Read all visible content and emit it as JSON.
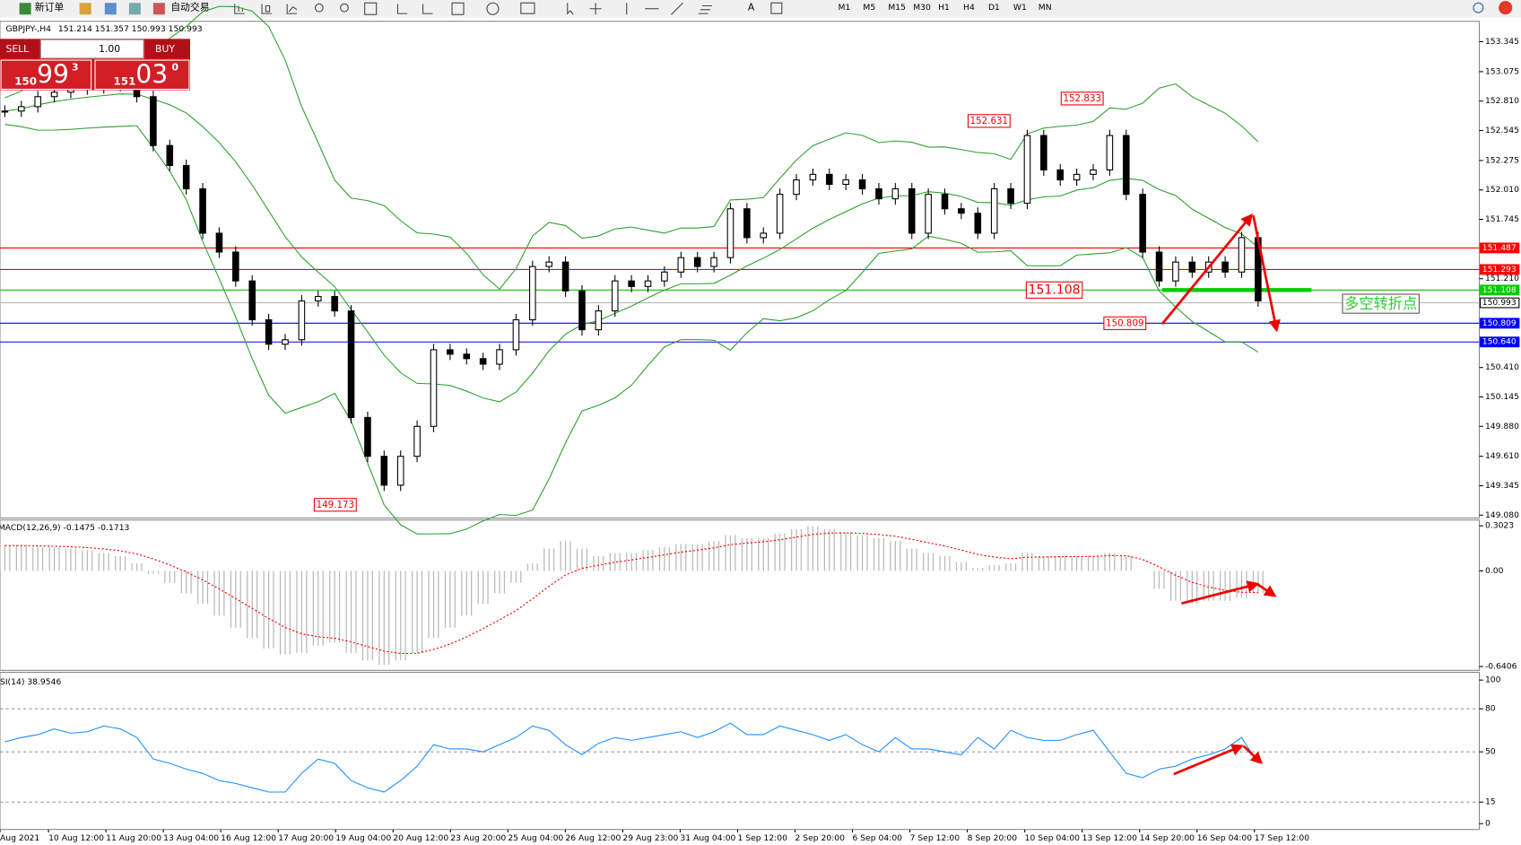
{
  "toolbar": {
    "new_order": "新订单",
    "auto_trading": "自动交易",
    "timeframes": [
      "M1",
      "M5",
      "M15",
      "M30",
      "H1",
      "H4",
      "D1",
      "W1",
      "MN"
    ]
  },
  "header": {
    "symbol": "GBPJPY-,H4",
    "quote": "151.214 151.357 150.993 150.993"
  },
  "trade_panel": {
    "sell": "SELL",
    "lots": "1.00",
    "buy": "BUY",
    "bid_big": "150",
    "bid_main": "99",
    "bid_small": "3",
    "ask_big": "151",
    "ask_main": "03",
    "ask_small": "0"
  },
  "chart": {
    "ylim": [
      149.08,
      153.345
    ],
    "yticks": [
      153.345,
      153.075,
      {
        "value": 152.81,
        "label": "152.810"
      },
      152.545,
      152.275,
      {
        "value": 152.01,
        "label": "152.010"
      },
      151.745,
      {
        "value": 151.21,
        "label": "151.210"
      },
      {
        "value": 150.41,
        "label": "150.410"
      },
      150.145,
      {
        "value": 149.88,
        "label": "149.880"
      },
      {
        "value": 149.61,
        "label": "149.610"
      },
      149.345,
      {
        "value": 149.08,
        "label": "149.080"
      }
    ],
    "current": 150.993,
    "levels": [
      {
        "value": 151.487,
        "color": "#ff0000"
      },
      {
        "value": 151.293,
        "color": "#ff0000"
      },
      {
        "value": 151.108,
        "color": "#00cc00"
      },
      {
        "value": 150.809,
        "color": "#0000ff"
      },
      {
        "value": 150.64,
        "label": "150.640",
        "color": "#0000ff"
      }
    ],
    "band_color": "#2ca02c",
    "closes": [
      152.72,
      152.76,
      152.85,
      152.89,
      152.92,
      152.93,
      152.95,
      152.98,
      152.85,
      152.41,
      152.23,
      152.02,
      151.62,
      151.45,
      151.19,
      150.84,
      150.62,
      150.66,
      151.01,
      151.05,
      150.92,
      149.96,
      149.61,
      149.35,
      149.61,
      149.88,
      150.57,
      150.53,
      150.49,
      150.44,
      150.57,
      150.84,
      151.32,
      151.36,
      151.1,
      150.75,
      150.92,
      151.19,
      151.14,
      151.19,
      151.27,
      151.4,
      151.32,
      151.4,
      151.84,
      151.58,
      151.62,
      151.97,
      152.1,
      152.15,
      152.06,
      152.1,
      152.02,
      151.93,
      152.02,
      151.62,
      151.97,
      151.84,
      151.8,
      151.62,
      152.02,
      151.89,
      152.5,
      152.19,
      152.1,
      152.15,
      152.19,
      152.5,
      151.97,
      151.45,
      151.19,
      151.36,
      151.27,
      151.36,
      151.27,
      151.58,
      151.01
    ],
    "annotations": [
      152.833,
      152.631,
      151.108,
      150.809,
      149.173
    ],
    "note": "多空转折点",
    "time_labels": [
      "Aug 2021",
      "10 Aug 12:00",
      "11 Aug 20:00",
      "13 Aug 04:00",
      "16 Aug 12:00",
      "17 Aug 20:00",
      "19 Aug 04:00",
      "20 Aug 12:00",
      "23 Aug 20:00",
      "25 Aug 04:00",
      "26 Aug 12:00",
      "29 Aug 23:00",
      "31 Aug 04:00",
      "1 Sep 12:00",
      "2 Sep 20:00",
      "6 Sep 04:00",
      "7 Sep 12:00",
      "8 Sep 20:00",
      "10 Sep 04:00",
      "13 Sep 12:00",
      "14 Sep 20:00",
      "16 Sep 04:00",
      "17 Sep 12:00"
    ]
  },
  "macd": {
    "label": "MACD(12,26,9) -0.1475 -0.1713",
    "ylim": [
      -0.6406,
      0.3023
    ],
    "yticks": [
      0.3023,
      {
        "value": 0,
        "label": "0.00"
      },
      -0.6406
    ],
    "histogram": [
      0.17,
      0.17,
      0.16,
      0.16,
      0.15,
      0.14,
      0.12,
      0.1,
      0.05,
      -0.02,
      -0.08,
      -0.15,
      -0.22,
      -0.3,
      -0.38,
      -0.45,
      -0.52,
      -0.56,
      -0.55,
      -0.5,
      -0.48,
      -0.55,
      -0.6,
      -0.63,
      -0.6,
      -0.55,
      -0.45,
      -0.38,
      -0.3,
      -0.22,
      -0.15,
      -0.08,
      0.05,
      0.15,
      0.2,
      0.15,
      0.1,
      0.12,
      0.12,
      0.14,
      0.16,
      0.18,
      0.18,
      0.2,
      0.24,
      0.22,
      0.22,
      0.25,
      0.28,
      0.3,
      0.28,
      0.26,
      0.24,
      0.22,
      0.2,
      0.15,
      0.12,
      0.1,
      0.06,
      0.02,
      0.04,
      0.05,
      0.12,
      0.1,
      0.1,
      0.1,
      0.1,
      0.12,
      0.1,
      0.0,
      -0.12,
      -0.2,
      -0.22,
      -0.2,
      -0.2,
      -0.18,
      -0.15
    ]
  },
  "rsi": {
    "label": "SI(14) 38.9546",
    "ylim": [
      0,
      100
    ],
    "yticks": [
      100,
      80,
      50,
      15,
      0
    ],
    "values": [
      57,
      60,
      62,
      66,
      63,
      64,
      68,
      66,
      60,
      45,
      42,
      38,
      35,
      30,
      28,
      25,
      22,
      22,
      35,
      45,
      42,
      30,
      25,
      22,
      30,
      40,
      55,
      52,
      52,
      50,
      55,
      60,
      68,
      65,
      55,
      48,
      56,
      60,
      58,
      60,
      62,
      64,
      60,
      64,
      70,
      62,
      62,
      68,
      65,
      62,
      58,
      62,
      55,
      50,
      60,
      52,
      52,
      50,
      48,
      60,
      52,
      65,
      60,
      58,
      58,
      62,
      65,
      50,
      35,
      32,
      38,
      40,
      45,
      48,
      52,
      60,
      42
    ]
  }
}
